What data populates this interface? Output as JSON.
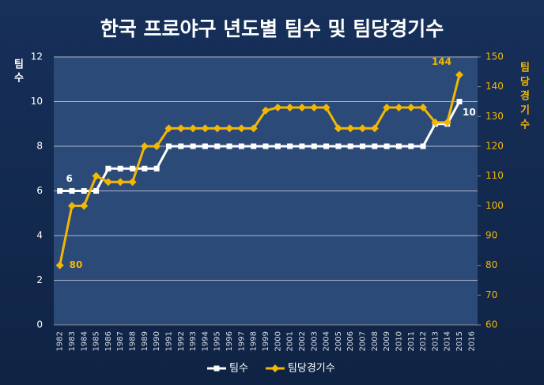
{
  "chart_data": {
    "type": "line",
    "title": "한국 프로야구 년도별 팀수 및 팀당경기수",
    "y_label": "팀수",
    "y2_label": "팀당경기수",
    "categories": [
      "1982",
      "1983",
      "1984",
      "1985",
      "1986",
      "1987",
      "1988",
      "1989",
      "1990",
      "1991",
      "1992",
      "1993",
      "1994",
      "1995",
      "1996",
      "1997",
      "1998",
      "1999",
      "2000",
      "2001",
      "2002",
      "2003",
      "2004",
      "2005",
      "2006",
      "2007",
      "2008",
      "2009",
      "2010",
      "2011",
      "2012",
      "2013",
      "2014",
      "2015",
      "2016"
    ],
    "series": [
      {
        "name": "팀수",
        "color": "#ffffff",
        "marker": "square",
        "values": [
          6,
          6,
          6,
          6,
          7,
          7,
          7,
          7,
          7,
          8,
          8,
          8,
          8,
          8,
          8,
          8,
          8,
          8,
          8,
          8,
          8,
          8,
          8,
          8,
          8,
          8,
          8,
          8,
          8,
          8,
          8,
          9,
          9,
          10,
          null
        ]
      },
      {
        "name": "팀당경기수",
        "color": "#f2b705",
        "marker": "diamond",
        "axis": "y2",
        "values": [
          80,
          100,
          100,
          110,
          108,
          108,
          108,
          120,
          120,
          126,
          126,
          126,
          126,
          126,
          126,
          126,
          126,
          132,
          133,
          133,
          133,
          133,
          133,
          126,
          126,
          126,
          126,
          133,
          133,
          133,
          133,
          128,
          128,
          144,
          null
        ]
      }
    ],
    "ylim": [
      0,
      12
    ],
    "yticks": [
      0,
      2,
      4,
      6,
      8,
      10,
      12
    ],
    "y2lim": [
      60,
      150
    ],
    "y2ticks": [
      60,
      70,
      80,
      90,
      100,
      110,
      120,
      130,
      140,
      150
    ],
    "grid": true,
    "legend": "bottom"
  }
}
